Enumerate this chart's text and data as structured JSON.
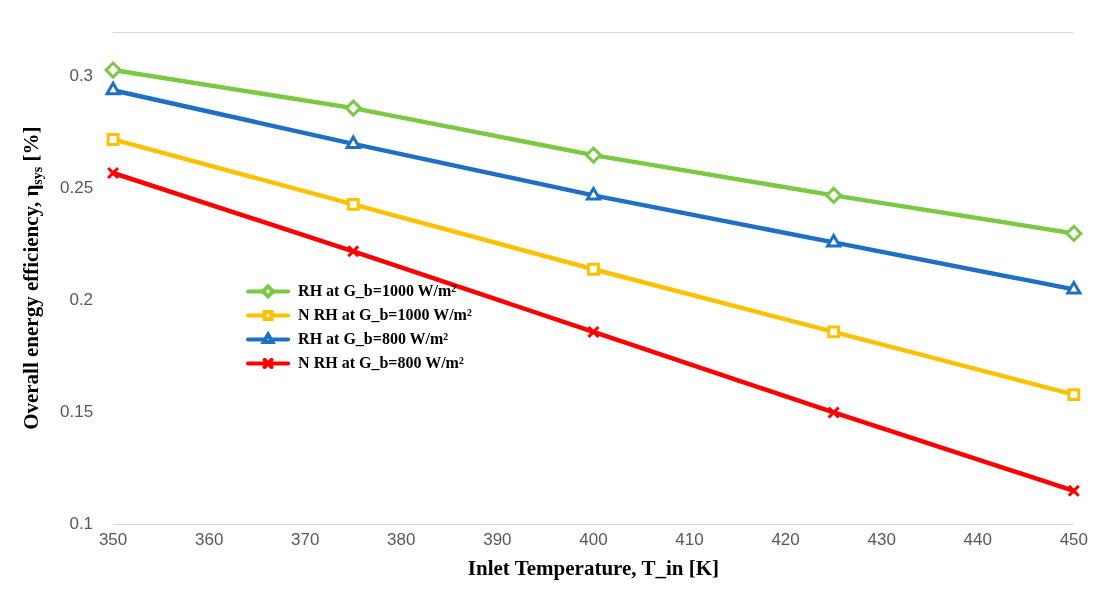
{
  "chart_data": {
    "type": "line",
    "xlabel": "Inlet Temperature, T_in [K]",
    "ylabel": "Overall energy efficiency, η$_{sys}$ [%]",
    "x": [
      350,
      375,
      400,
      425,
      450
    ],
    "series": [
      {
        "name": "RH at G_b=1000 W/m²",
        "color": "#7ac943",
        "marker": "diamond",
        "values": [
          0.303,
          0.286,
          0.265,
          0.247,
          0.23
        ]
      },
      {
        "name": "N RH at G_b=1000 W/m²",
        "color": "#ffc000",
        "marker": "square",
        "values": [
          0.272,
          0.243,
          0.214,
          0.186,
          0.158
        ]
      },
      {
        "name": "RH at G_b=800 W/m²",
        "color": "#1f6fc5",
        "marker": "triangle",
        "values": [
          0.294,
          0.27,
          0.247,
          0.226,
          0.205
        ]
      },
      {
        "name": "N RH at G_b=800 W/m²",
        "color": "#ff0000",
        "marker": "cross",
        "values": [
          0.257,
          0.222,
          0.186,
          0.15,
          0.115
        ]
      }
    ],
    "xlim": [
      350,
      450
    ],
    "xticks": [
      350,
      360,
      370,
      380,
      390,
      400,
      410,
      420,
      430,
      440,
      450
    ],
    "ylim": [
      0.1,
      0.32
    ],
    "yticks": [
      0.1,
      0.15,
      0.2,
      0.25,
      0.3
    ],
    "grid": false,
    "legend": "left",
    "line_style": "solid"
  }
}
